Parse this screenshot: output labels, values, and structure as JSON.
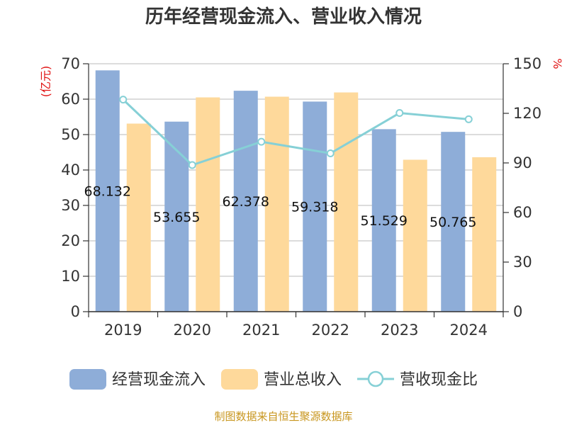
{
  "chart_data": {
    "type": "bar",
    "title": "历年经营现金流入、营业收入情况",
    "categories": [
      "2019",
      "2020",
      "2021",
      "2022",
      "2023",
      "2024"
    ],
    "series": [
      {
        "name": "经营现金流入",
        "type": "bar",
        "axis": "left",
        "color": "#8eadd8",
        "values": [
          68.132,
          53.655,
          62.378,
          59.318,
          51.529,
          50.765
        ],
        "labels": [
          "68.132",
          "53.655",
          "62.378",
          "59.318",
          "51.529",
          "50.765"
        ]
      },
      {
        "name": "营业总收入",
        "type": "bar",
        "axis": "left",
        "color": "#fed99b",
        "values": [
          53.1,
          60.5,
          60.7,
          61.9,
          42.9,
          43.6
        ]
      },
      {
        "name": "营收现金比",
        "type": "line",
        "axis": "right",
        "color": "#86d0d6",
        "values": [
          128.3,
          88.7,
          102.8,
          95.8,
          120.2,
          116.4
        ]
      }
    ],
    "y_left": {
      "unit": "(亿元)",
      "min": 0,
      "max": 70,
      "ticks": [
        "0",
        "10",
        "20",
        "30",
        "40",
        "50",
        "60",
        "70"
      ]
    },
    "y_right": {
      "unit": "%",
      "min": 0,
      "max": 150,
      "ticks": [
        "0",
        "30",
        "60",
        "90",
        "120",
        "150"
      ]
    },
    "grid": true,
    "legend_position": "bottom"
  },
  "source": "制图数据来自恒生聚源数据库"
}
